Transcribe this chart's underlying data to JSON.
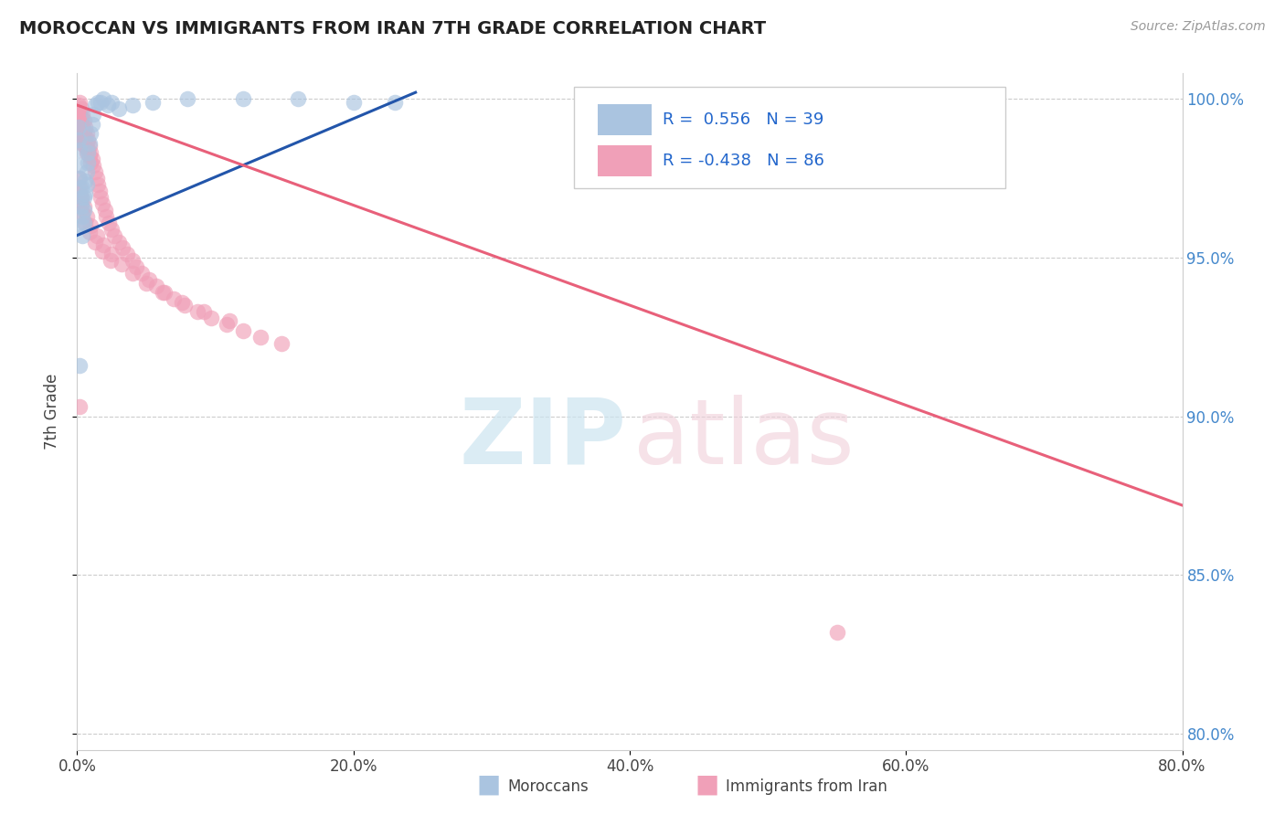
{
  "title": "MOROCCAN VS IMMIGRANTS FROM IRAN 7TH GRADE CORRELATION CHART",
  "source": "Source: ZipAtlas.com",
  "ylabel": "7th Grade",
  "xmin": 0.0,
  "xmax": 0.8,
  "ymin": 0.795,
  "ymax": 1.008,
  "yticks": [
    0.8,
    0.85,
    0.9,
    0.95,
    1.0
  ],
  "xticks": [
    0.0,
    0.2,
    0.4,
    0.6,
    0.8
  ],
  "blue_color": "#aac4e0",
  "pink_color": "#f0a0b8",
  "blue_line_color": "#2255aa",
  "pink_line_color": "#e8607a",
  "blue_line_x": [
    0.0,
    0.245
  ],
  "blue_line_y": [
    0.957,
    1.002
  ],
  "pink_line_x": [
    0.0,
    0.8
  ],
  "pink_line_y": [
    0.998,
    0.872
  ],
  "blue_scatter_x": [
    0.001,
    0.001,
    0.002,
    0.002,
    0.002,
    0.003,
    0.003,
    0.003,
    0.004,
    0.004,
    0.004,
    0.005,
    0.005,
    0.005,
    0.006,
    0.006,
    0.007,
    0.007,
    0.008,
    0.008,
    0.009,
    0.01,
    0.011,
    0.012,
    0.013,
    0.015,
    0.017,
    0.019,
    0.022,
    0.025,
    0.03,
    0.04,
    0.055,
    0.08,
    0.12,
    0.16,
    0.2,
    0.23,
    0.002
  ],
  "blue_scatter_y": [
    0.991,
    0.987,
    0.984,
    0.979,
    0.975,
    0.972,
    0.969,
    0.966,
    0.963,
    0.96,
    0.957,
    0.969,
    0.965,
    0.961,
    0.974,
    0.97,
    0.977,
    0.973,
    0.98,
    0.983,
    0.986,
    0.989,
    0.992,
    0.995,
    0.998,
    0.999,
    0.999,
    1.0,
    0.998,
    0.999,
    0.997,
    0.998,
    0.999,
    1.0,
    1.0,
    1.0,
    0.999,
    0.999,
    0.916
  ],
  "pink_scatter_x": [
    0.001,
    0.001,
    0.001,
    0.002,
    0.002,
    0.002,
    0.002,
    0.003,
    0.003,
    0.003,
    0.003,
    0.004,
    0.004,
    0.004,
    0.004,
    0.005,
    0.005,
    0.005,
    0.006,
    0.006,
    0.006,
    0.007,
    0.007,
    0.007,
    0.008,
    0.008,
    0.009,
    0.009,
    0.01,
    0.01,
    0.011,
    0.012,
    0.013,
    0.014,
    0.015,
    0.016,
    0.017,
    0.018,
    0.02,
    0.021,
    0.023,
    0.025,
    0.027,
    0.03,
    0.033,
    0.036,
    0.04,
    0.043,
    0.047,
    0.052,
    0.057,
    0.063,
    0.07,
    0.078,
    0.087,
    0.097,
    0.108,
    0.12,
    0.133,
    0.148,
    0.001,
    0.002,
    0.003,
    0.005,
    0.007,
    0.01,
    0.014,
    0.019,
    0.025,
    0.032,
    0.04,
    0.05,
    0.062,
    0.076,
    0.092,
    0.11,
    0.002,
    0.003,
    0.004,
    0.006,
    0.009,
    0.013,
    0.018,
    0.024,
    0.55,
    0.002
  ],
  "pink_scatter_y": [
    0.998,
    0.995,
    0.992,
    0.999,
    0.996,
    0.993,
    0.99,
    0.997,
    0.994,
    0.991,
    0.988,
    0.995,
    0.992,
    0.989,
    0.986,
    0.993,
    0.99,
    0.987,
    0.991,
    0.988,
    0.985,
    0.989,
    0.986,
    0.983,
    0.987,
    0.984,
    0.985,
    0.982,
    0.983,
    0.98,
    0.981,
    0.979,
    0.977,
    0.975,
    0.973,
    0.971,
    0.969,
    0.967,
    0.965,
    0.963,
    0.961,
    0.959,
    0.957,
    0.955,
    0.953,
    0.951,
    0.949,
    0.947,
    0.945,
    0.943,
    0.941,
    0.939,
    0.937,
    0.935,
    0.933,
    0.931,
    0.929,
    0.927,
    0.925,
    0.923,
    0.975,
    0.972,
    0.969,
    0.966,
    0.963,
    0.96,
    0.957,
    0.954,
    0.951,
    0.948,
    0.945,
    0.942,
    0.939,
    0.936,
    0.933,
    0.93,
    0.97,
    0.967,
    0.964,
    0.961,
    0.958,
    0.955,
    0.952,
    0.949,
    0.832,
    0.903
  ],
  "watermark_zip_color": "#cce4f0",
  "watermark_atlas_color": "#f0d0da",
  "bottom_legend_blue": "Moroccans",
  "bottom_legend_pink": "Immigrants from Iran"
}
